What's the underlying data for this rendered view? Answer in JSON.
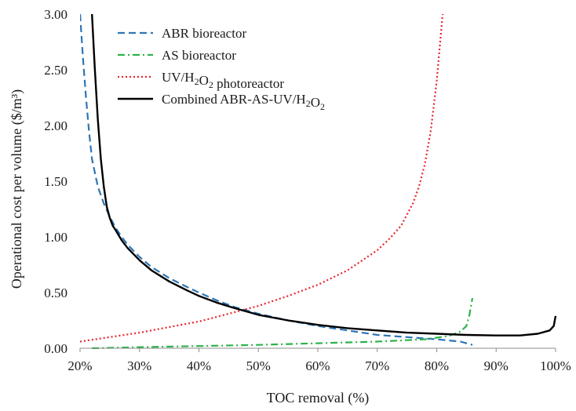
{
  "chart_data": {
    "type": "line",
    "title": "",
    "xlabel": "TOC removal (%)",
    "ylabel": "Operational cost per volume ($/m³)",
    "xlim": [
      20,
      100
    ],
    "ylim": [
      0,
      3.0
    ],
    "x_ticks": [
      20,
      30,
      40,
      50,
      60,
      70,
      80,
      90,
      100
    ],
    "x_tick_labels": [
      "20%",
      "30%",
      "40%",
      "50%",
      "60%",
      "70%",
      "80%",
      "90%",
      "100%"
    ],
    "y_ticks": [
      0,
      0.5,
      1.0,
      1.5,
      2.0,
      2.5,
      3.0
    ],
    "y_tick_labels": [
      "0.00",
      "0.50",
      "1.00",
      "1.50",
      "2.00",
      "2.50",
      "3.00"
    ],
    "grid": false,
    "legend_position": "top-left",
    "series": [
      {
        "name": "ABR bioreactor",
        "name_parts": [
          {
            "t": "ABR bioreactor"
          }
        ],
        "color": "#2e75b6",
        "dash": "dashed",
        "x": [
          20.0,
          20.5,
          21,
          21.5,
          22,
          23,
          24,
          25,
          26,
          27,
          28,
          30,
          32,
          35,
          38,
          40,
          43,
          46,
          50,
          55,
          60,
          65,
          70,
          75,
          80,
          84,
          86
        ],
        "y": [
          3.0,
          2.6,
          2.25,
          1.95,
          1.7,
          1.45,
          1.3,
          1.18,
          1.08,
          1.0,
          0.93,
          0.82,
          0.73,
          0.63,
          0.55,
          0.5,
          0.43,
          0.37,
          0.31,
          0.25,
          0.2,
          0.16,
          0.12,
          0.1,
          0.08,
          0.06,
          0.03
        ]
      },
      {
        "name": "AS bioreactor",
        "name_parts": [
          {
            "t": "AS bioreactor"
          }
        ],
        "color": "#2db34a",
        "dash": "dashdot",
        "x": [
          22,
          30,
          40,
          50,
          60,
          70,
          78,
          82,
          84,
          85,
          85.5,
          86
        ],
        "y": [
          0.0,
          0.01,
          0.02,
          0.03,
          0.045,
          0.06,
          0.08,
          0.11,
          0.15,
          0.2,
          0.3,
          0.45
        ]
      },
      {
        "name": "UV/H2O2 photoreactor",
        "name_parts": [
          {
            "t": "UV/H"
          },
          {
            "t": "2",
            "sub": true
          },
          {
            "t": "O"
          },
          {
            "t": "2",
            "sub": true
          },
          {
            "t": " photoreactor"
          }
        ],
        "color": "#e8242b",
        "dash": "dotted",
        "x": [
          20,
          25,
          30,
          35,
          40,
          45,
          50,
          55,
          60,
          65,
          70,
          72,
          74,
          76,
          77,
          78,
          79,
          80,
          80.5,
          81
        ],
        "y": [
          0.06,
          0.1,
          0.14,
          0.19,
          0.24,
          0.31,
          0.38,
          0.47,
          0.57,
          0.7,
          0.88,
          0.98,
          1.1,
          1.3,
          1.45,
          1.65,
          1.95,
          2.4,
          2.7,
          3.0
        ]
      },
      {
        "name": "Combined ABR-AS-UV/H2O2",
        "name_parts": [
          {
            "t": "Combined ABR-AS-UV/H"
          },
          {
            "t": "2",
            "sub": true
          },
          {
            "t": "O"
          },
          {
            "t": "2",
            "sub": true
          }
        ],
        "color": "#000000",
        "dash": "solid",
        "x": [
          22.0,
          22.5,
          23,
          23.5,
          24,
          24.5,
          25,
          25.5,
          26,
          27,
          28,
          30,
          32,
          35,
          38,
          40,
          43,
          46,
          50,
          55,
          60,
          65,
          70,
          75,
          80,
          85,
          90,
          94,
          97,
          99,
          99.7,
          100
        ],
        "y": [
          3.0,
          2.5,
          2.05,
          1.7,
          1.45,
          1.27,
          1.17,
          1.1,
          1.06,
          0.97,
          0.9,
          0.79,
          0.7,
          0.6,
          0.52,
          0.47,
          0.41,
          0.36,
          0.3,
          0.25,
          0.21,
          0.18,
          0.16,
          0.14,
          0.13,
          0.12,
          0.115,
          0.115,
          0.13,
          0.16,
          0.2,
          0.29
        ]
      }
    ]
  }
}
